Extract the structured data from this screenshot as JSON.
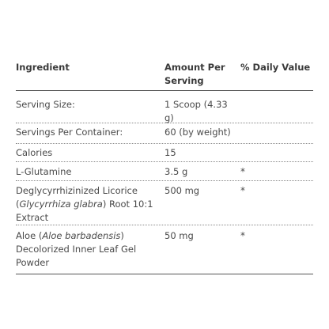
{
  "table": {
    "headers": {
      "ingredient": "Ingredient",
      "amount": "Amount Per Serving",
      "daily_value": "% Daily Value"
    },
    "rows": [
      {
        "ingredient": "Serving Size:",
        "amount": "1 Scoop (4.33 g)",
        "daily_value": ""
      },
      {
        "ingredient": "Servings Per Container:",
        "amount": "60 (by weight)",
        "daily_value": ""
      },
      {
        "ingredient": "Calories",
        "amount": "15",
        "daily_value": ""
      },
      {
        "ingredient": "L-Glutamine",
        "amount": "3.5 g",
        "daily_value": "*"
      },
      {
        "ingredient_prefix": "Deglycyrrhizinized Licorice (",
        "ingredient_italic": "Glycyrrhiza glabra",
        "ingredient_suffix": ") Root 10:1 Extract",
        "amount": "500 mg",
        "daily_value": "*"
      },
      {
        "ingredient_prefix": "Aloe (",
        "ingredient_italic": "Aloe barbadensis",
        "ingredient_suffix": ") Decolorized Inner Leaf Gel Powder",
        "amount": "50 mg",
        "daily_value": "*"
      }
    ]
  }
}
